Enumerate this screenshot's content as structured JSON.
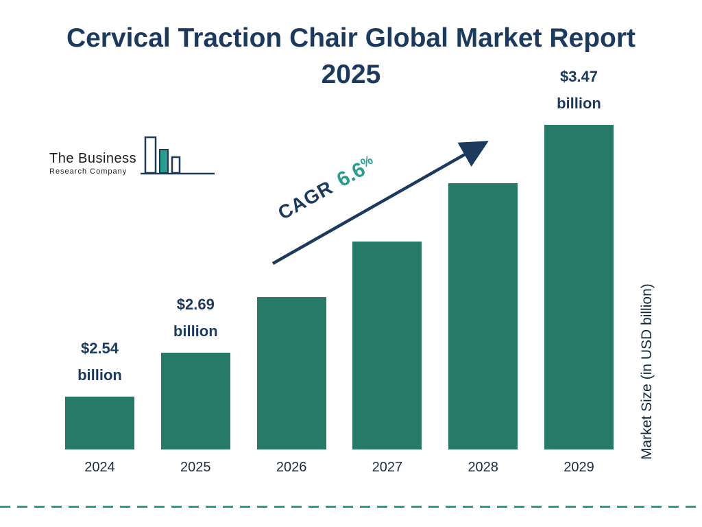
{
  "header": {
    "title_line1": "Cervical Traction Chair Global Market Report",
    "title_line2": "2025"
  },
  "logo": {
    "line1": "The Business",
    "line2": "Research Company"
  },
  "cagr": {
    "label": "CAGR",
    "value": "6.6",
    "percent": "%"
  },
  "axis": {
    "y_label": "Market Size (in USD billion)"
  },
  "colors": {
    "bar": "#287a68",
    "navy": "#1b3a5e",
    "teal": "#2a9d8f"
  },
  "chart_data": {
    "type": "bar",
    "title": "Cervical Traction Chair Global Market Report 2025",
    "categories": [
      "2024",
      "2025",
      "2026",
      "2027",
      "2028",
      "2029"
    ],
    "values": [
      2.54,
      2.69,
      2.88,
      3.07,
      3.27,
      3.47
    ],
    "value_labels": [
      {
        "line1": "$2.54",
        "line2": "billion"
      },
      {
        "line1": "$2.69",
        "line2": "billion"
      },
      null,
      null,
      null,
      {
        "line1": "$3.47",
        "line2": "billion"
      }
    ],
    "cagr_annotation": "CAGR 6.6%",
    "xlabel": "",
    "ylabel": "Market Size (in USD billion)",
    "ylim": [
      2.36,
      3.47
    ],
    "grid": false,
    "legend": false
  }
}
